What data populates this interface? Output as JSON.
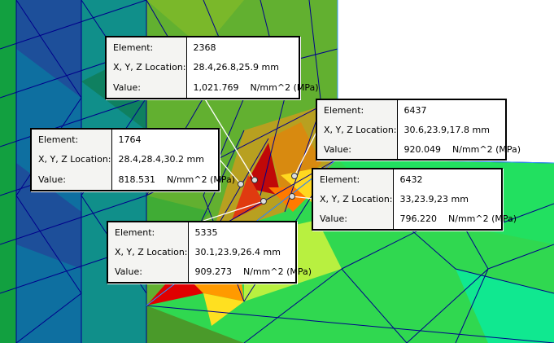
{
  "labels": {
    "element": "Element:",
    "location": "X, Y, Z Location:",
    "value": "Value:"
  },
  "colors": {
    "high": "#d40000",
    "mid": "#ff7a00",
    "low": "#1aa84a",
    "min": "#1a3a9a",
    "mesh_lines": "#00008b"
  },
  "probes": [
    {
      "element": "2368",
      "location": "28.4,26.8,25.9 mm",
      "value": "1,021.769",
      "unit": "N/mm^2 (MPa)"
    },
    {
      "element": "1764",
      "location": "28.4,28.4,30.2 mm",
      "value": "818.531",
      "unit": "N/mm^2 (MPa)"
    },
    {
      "element": "6437",
      "location": "30.6,23.9,17.8 mm",
      "value": "920.049",
      "unit": "N/mm^2 (MPa)"
    },
    {
      "element": "6432",
      "location": "33,23.9,23 mm",
      "value": "796.220",
      "unit": "N/mm^2 (MPa)"
    },
    {
      "element": "5335",
      "location": "30.1,23.9,26.4 mm",
      "value": "909.273",
      "unit": "N/mm^2 (MPa)"
    }
  ]
}
